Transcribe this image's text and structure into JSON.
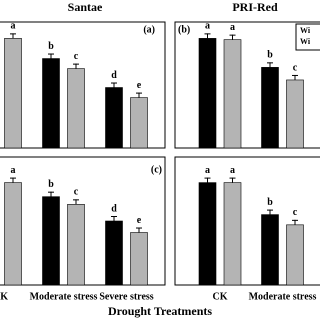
{
  "figure": {
    "xlabel": "Drought Treatments"
  },
  "chart_data": [
    {
      "type": "bar",
      "title": "Santae",
      "panel_label": "(a)",
      "categories": [
        null,
        null,
        null
      ],
      "ylim": [
        0,
        100
      ],
      "series": [
        {
          "color": "#000000",
          "values": [
            null,
            71,
            48
          ],
          "labels": [
            null,
            "b",
            "d"
          ]
        },
        {
          "color": "#b4b4b4",
          "values": [
            87,
            63,
            40
          ],
          "labels": [
            "a",
            "c",
            "e"
          ]
        }
      ]
    },
    {
      "type": "bar",
      "title": "PRI-Red",
      "panel_label": "(b)",
      "categories": [
        null,
        null
      ],
      "ylim": [
        0,
        100
      ],
      "legend": "upper right",
      "series": [
        {
          "name": "Wi",
          "color": "#000000",
          "values": [
            87,
            64
          ],
          "labels": [
            "a",
            "b"
          ]
        },
        {
          "name": "Wi",
          "color": "#b4b4b4",
          "values": [
            86,
            54
          ],
          "labels": [
            "a",
            "c"
          ]
        }
      ]
    },
    {
      "type": "bar",
      "panel_label": "(c)",
      "categories": [
        "CK",
        "Moderate stress",
        "Severe stress"
      ],
      "ylim": [
        0,
        100
      ],
      "series": [
        {
          "color": "#000000",
          "values": [
            null,
            69,
            50
          ],
          "labels": [
            null,
            "b",
            "d"
          ]
        },
        {
          "color": "#b4b4b4",
          "values": [
            80,
            63,
            41
          ],
          "labels": [
            "a",
            "c",
            "e"
          ]
        }
      ]
    },
    {
      "type": "bar",
      "categories": [
        "CK",
        "Moderate stress"
      ],
      "ylim": [
        0,
        100
      ],
      "series": [
        {
          "color": "#000000",
          "values": [
            80,
            55
          ],
          "labels": [
            "a",
            "b"
          ]
        },
        {
          "color": "#b4b4b4",
          "values": [
            80,
            47
          ],
          "labels": [
            "a",
            "c"
          ]
        }
      ]
    }
  ]
}
